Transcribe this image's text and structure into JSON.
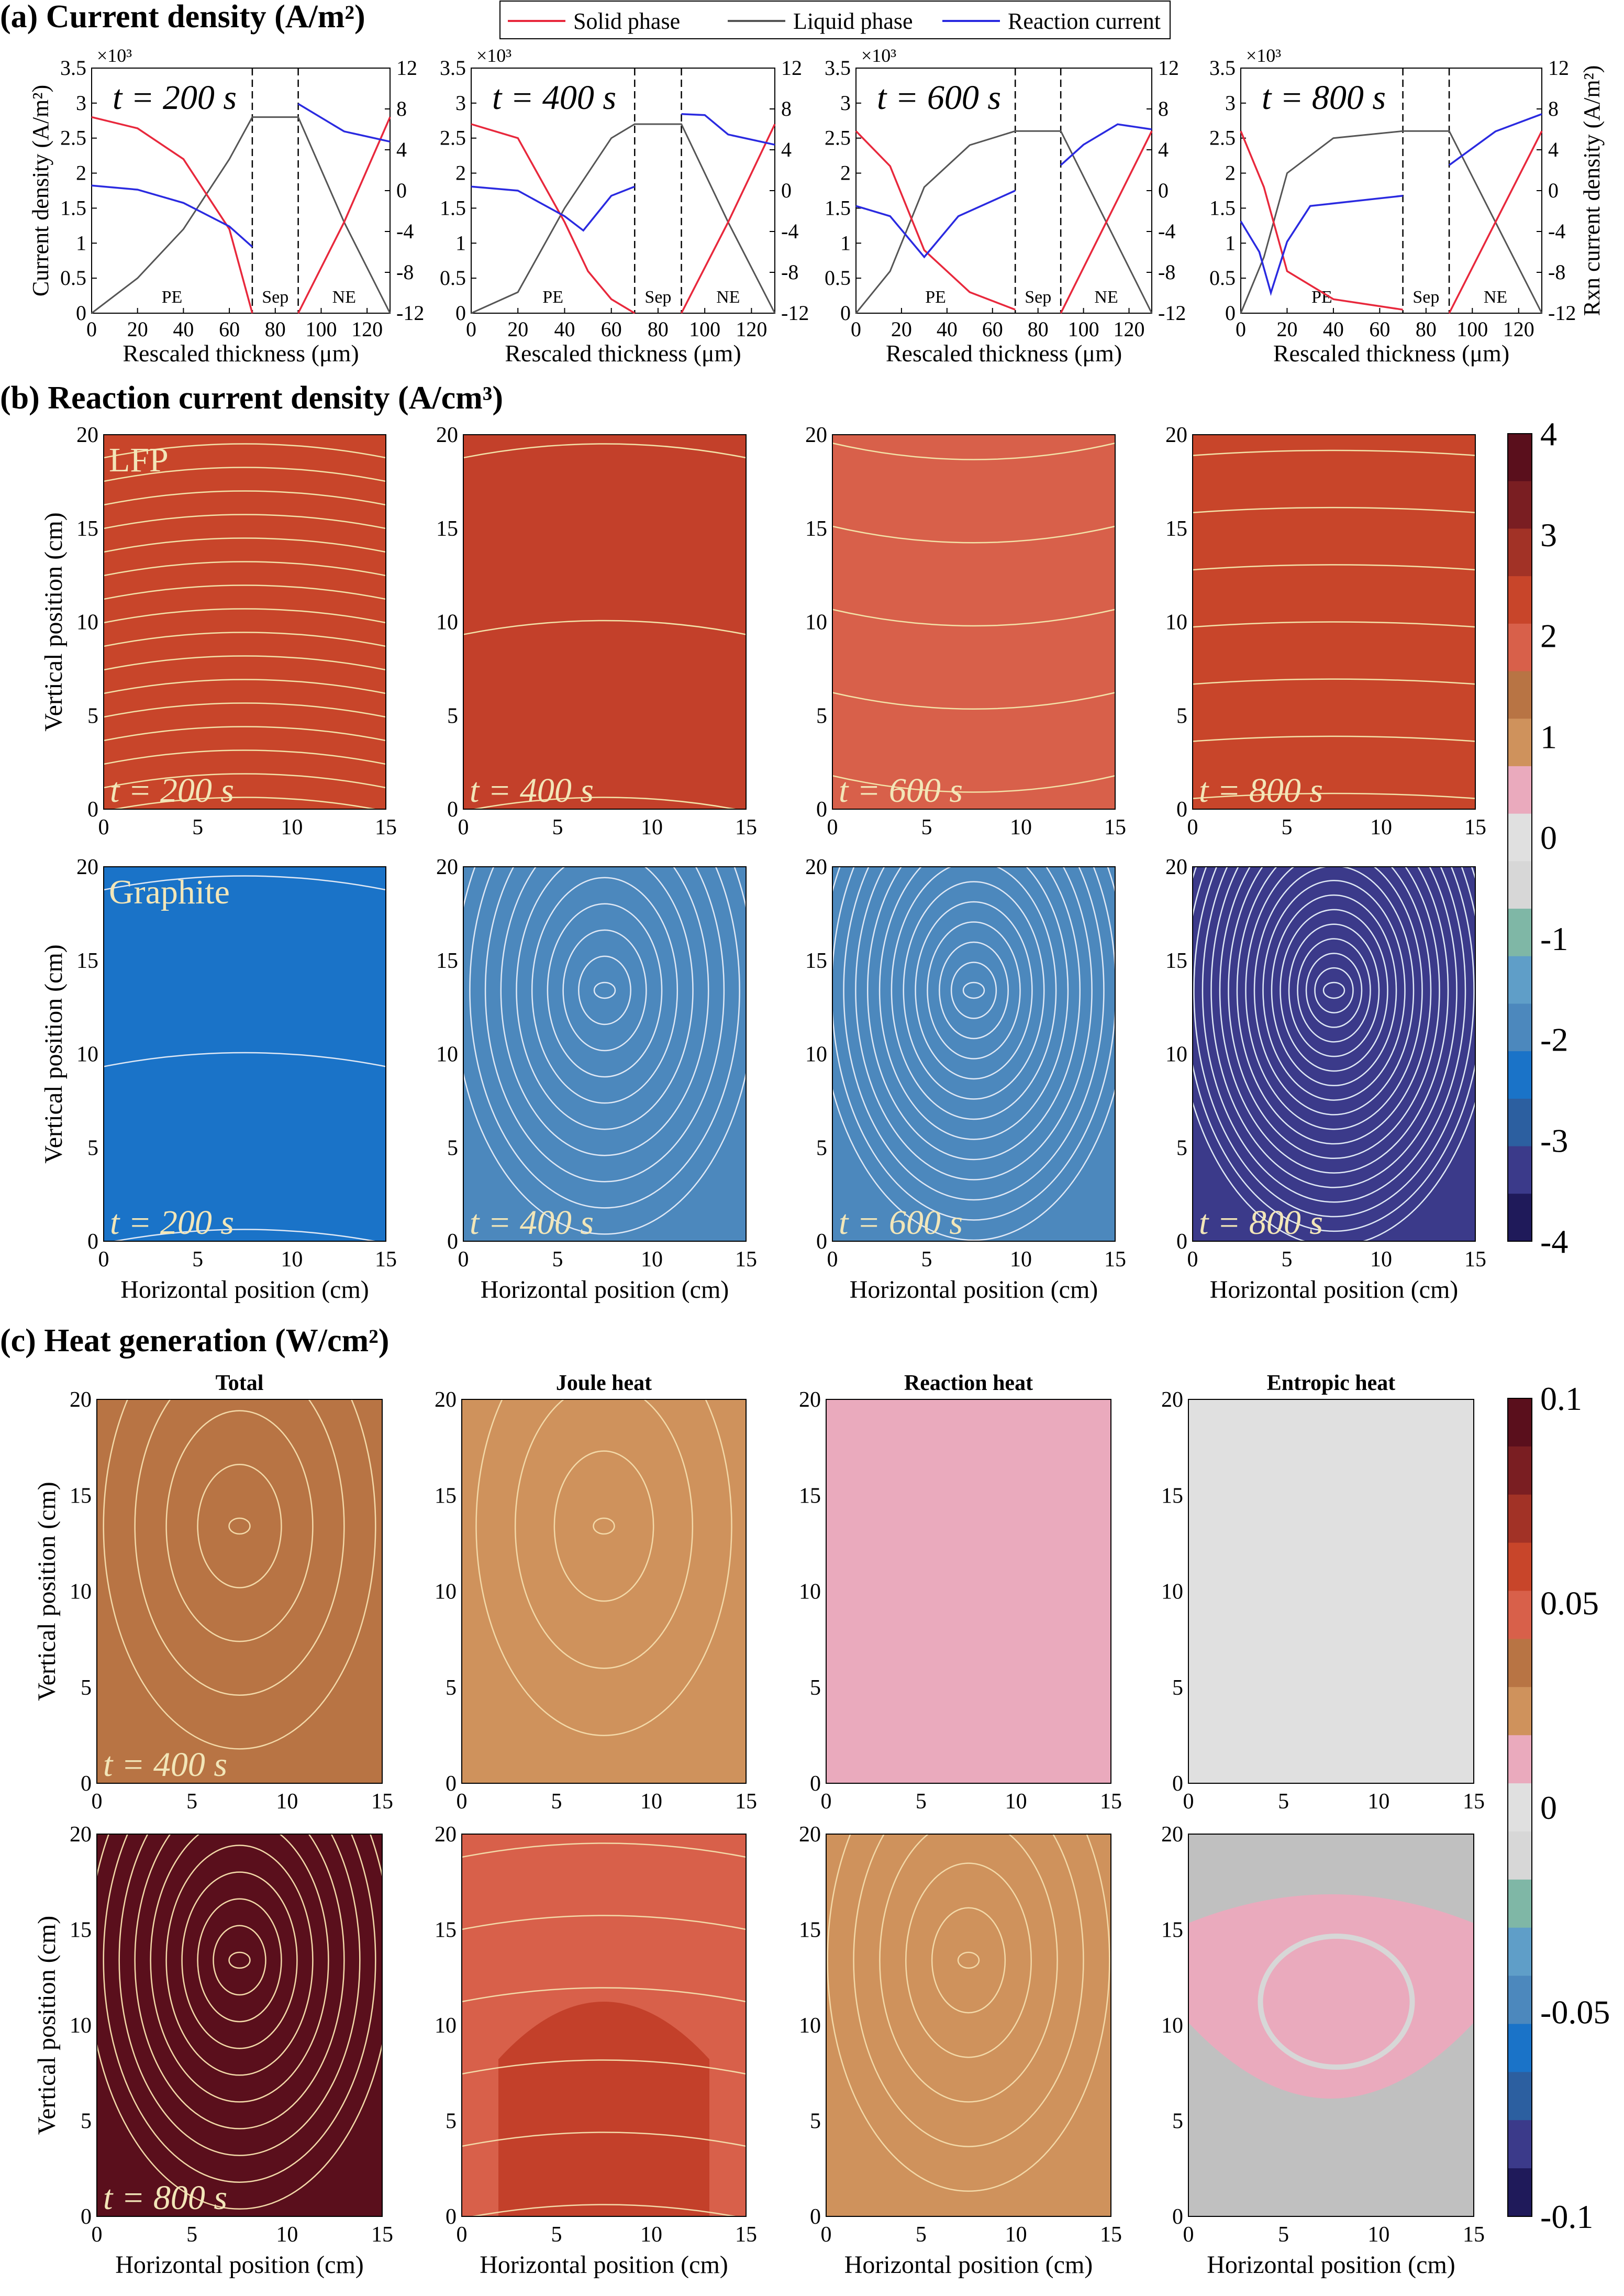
{
  "figure": {
    "section_a_title": "(a) Current density (A/m²)",
    "section_b_title": "(b) Reaction current density (A/cm³)",
    "section_c_title": "(c) Heat generation (W/cm²)"
  },
  "legend": {
    "solid": "Solid phase",
    "liquid": "Liquid phase",
    "reaction": "Reaction current"
  },
  "colors": {
    "solid": "#e8283c",
    "liquid": "#555555",
    "reaction": "#2a2ae0",
    "lfp_200": "#c8452a",
    "lfp_400": "#c3402a",
    "lfp_600": "#d8604a",
    "lfp_800": "#c8452a",
    "gr_200": "#1a73c8",
    "gr_400": "#4c88bd",
    "gr_600": "#4c88bd",
    "gr_800": "#3b3a8a",
    "heat_total_400": "#b87444",
    "heat_joule_400": "#cf925c",
    "heat_reaction_400": "#eaaabd",
    "heat_entropic_400": "#e0e0e0",
    "heat_total_800": "#5a0f1c",
    "heat_joule_800": "#d8604a",
    "heat_reaction_800": "#cf925c",
    "heat_entropic_800": "#c0c0c0"
  },
  "chart_data": [
    {
      "type": "line",
      "panel": "a",
      "times": [
        "t = 200 s",
        "t = 400 s",
        "t = 600 s",
        "t = 800 s"
      ],
      "xlabel": "Rescaled thickness (μm)",
      "ylabel_left": "Current density (A/m²)",
      "ylabel_right": "Rxn current density (A/m²)",
      "left_multiplier": "×10³",
      "xlim": [
        0,
        130
      ],
      "ylim_left": [
        0,
        3.5
      ],
      "ylim_right": [
        -12,
        12
      ],
      "x_ticks": [
        "0",
        "20",
        "40",
        "60",
        "80",
        "100",
        "120"
      ],
      "y_ticks_left": [
        "0",
        "0.5",
        "1",
        "1.5",
        "2",
        "2.5",
        "3",
        "3.5"
      ],
      "y_ticks_right": [
        "-12",
        "-8",
        "-4",
        "0",
        "4",
        "8",
        "12"
      ],
      "region_labels": [
        "PE",
        "Sep",
        "NE"
      ],
      "region_bounds": [
        70,
        90
      ],
      "subpanels": [
        {
          "time": "t = 200 s",
          "solid_pe": [
            [
              0,
              2.8
            ],
            [
              20,
              2.64
            ],
            [
              40,
              2.2
            ],
            [
              60,
              1.2
            ],
            [
              70,
              0
            ]
          ],
          "solid_ne": [
            [
              90,
              0
            ],
            [
              110,
              1.3
            ],
            [
              130,
              2.8
            ]
          ],
          "liquid": [
            [
              0,
              0
            ],
            [
              20,
              0.5
            ],
            [
              40,
              1.2
            ],
            [
              60,
              2.2
            ],
            [
              70,
              2.8
            ],
            [
              90,
              2.8
            ],
            [
              110,
              1.3
            ],
            [
              130,
              0
            ]
          ],
          "reaction_pe": [
            [
              0,
              0.5
            ],
            [
              20,
              0.1
            ],
            [
              40,
              -1.2
            ],
            [
              60,
              -3.5
            ],
            [
              70,
              -5.5
            ]
          ],
          "reaction_ne": [
            [
              90,
              8.5
            ],
            [
              110,
              5.8
            ],
            [
              130,
              4.8
            ]
          ]
        },
        {
          "time": "t = 400 s",
          "solid_pe": [
            [
              0,
              2.7
            ],
            [
              20,
              2.5
            ],
            [
              40,
              1.3
            ],
            [
              50,
              0.6
            ],
            [
              60,
              0.2
            ],
            [
              70,
              0
            ]
          ],
          "solid_ne": [
            [
              90,
              0
            ],
            [
              110,
              1.3
            ],
            [
              130,
              2.7
            ]
          ],
          "liquid": [
            [
              0,
              0
            ],
            [
              20,
              0.3
            ],
            [
              40,
              1.5
            ],
            [
              60,
              2.5
            ],
            [
              70,
              2.7
            ],
            [
              90,
              2.7
            ],
            [
              110,
              1.3
            ],
            [
              130,
              0
            ]
          ],
          "reaction_pe": [
            [
              0,
              0.4
            ],
            [
              20,
              0
            ],
            [
              40,
              -2.5
            ],
            [
              48,
              -3.9
            ],
            [
              60,
              -0.5
            ],
            [
              70,
              0.4
            ]
          ],
          "reaction_ne": [
            [
              90,
              7.5
            ],
            [
              100,
              7.4
            ],
            [
              110,
              5.5
            ],
            [
              130,
              4.5
            ]
          ]
        },
        {
          "time": "t = 600 s",
          "solid_pe": [
            [
              0,
              2.6
            ],
            [
              15,
              2.1
            ],
            [
              30,
              0.9
            ],
            [
              50,
              0.3
            ],
            [
              70,
              0.05
            ]
          ],
          "solid_ne": [
            [
              90,
              0
            ],
            [
              110,
              1.3
            ],
            [
              130,
              2.6
            ]
          ],
          "liquid": [
            [
              0,
              0
            ],
            [
              15,
              0.6
            ],
            [
              30,
              1.8
            ],
            [
              50,
              2.4
            ],
            [
              70,
              2.6
            ],
            [
              90,
              2.6
            ],
            [
              110,
              1.3
            ],
            [
              130,
              0
            ]
          ],
          "reaction_pe": [
            [
              0,
              -1.5
            ],
            [
              15,
              -2.5
            ],
            [
              30,
              -6.5
            ],
            [
              45,
              -2.5
            ],
            [
              70,
              0
            ]
          ],
          "reaction_ne": [
            [
              90,
              2.5
            ],
            [
              100,
              4.5
            ],
            [
              115,
              6.5
            ],
            [
              130,
              6.0
            ]
          ]
        },
        {
          "time": "t = 800 s",
          "solid_pe": [
            [
              0,
              2.6
            ],
            [
              10,
              1.8
            ],
            [
              20,
              0.6
            ],
            [
              40,
              0.2
            ],
            [
              70,
              0.05
            ]
          ],
          "solid_ne": [
            [
              90,
              0
            ],
            [
              110,
              1.3
            ],
            [
              130,
              2.6
            ]
          ],
          "liquid": [
            [
              0,
              0
            ],
            [
              10,
              0.8
            ],
            [
              20,
              2.0
            ],
            [
              40,
              2.5
            ],
            [
              70,
              2.6
            ],
            [
              90,
              2.6
            ],
            [
              110,
              1.3
            ],
            [
              130,
              0
            ]
          ],
          "reaction_pe": [
            [
              0,
              -3.0
            ],
            [
              8,
              -6.0
            ],
            [
              13,
              -10.0
            ],
            [
              20,
              -5.0
            ],
            [
              30,
              -1.5
            ],
            [
              70,
              -0.5
            ]
          ],
          "reaction_ne": [
            [
              90,
              2.5
            ],
            [
              110,
              5.8
            ],
            [
              130,
              7.5
            ]
          ]
        }
      ]
    },
    {
      "type": "heatmap",
      "panel": "b",
      "rows": [
        {
          "label": "LFP",
          "times": [
            "t = 200 s",
            "t = 400 s",
            "t = 600 s",
            "t = 800 s"
          ]
        },
        {
          "label": "Graphite",
          "times": [
            "t = 200 s",
            "t = 400 s",
            "t = 600 s",
            "t = 800 s"
          ]
        }
      ],
      "xlabel": "Horizontal position (cm)",
      "ylabel": "Vertical position (cm)",
      "xlim": [
        0,
        15
      ],
      "ylim": [
        0,
        20
      ],
      "x_ticks": [
        "0",
        "5",
        "10",
        "15"
      ],
      "y_ticks": [
        "0",
        "5",
        "10",
        "15",
        "20"
      ],
      "colorbar_ticks": [
        "4",
        "3",
        "2",
        "1",
        "0",
        "-1",
        "-2",
        "-3",
        "-4"
      ],
      "colorbar_range": [
        -4,
        4
      ]
    },
    {
      "type": "heatmap",
      "panel": "c",
      "column_titles": [
        "Total",
        "Joule heat",
        "Reaction heat",
        "Entropic heat"
      ],
      "row_times": [
        "t = 400 s",
        "t = 800 s"
      ],
      "xlabel": "Horizontal position (cm)",
      "ylabel": "Vertical position (cm)",
      "xlim": [
        0,
        15
      ],
      "ylim": [
        0,
        20
      ],
      "x_ticks": [
        "0",
        "5",
        "10",
        "15"
      ],
      "y_ticks": [
        "0",
        "5",
        "10",
        "15",
        "20"
      ],
      "colorbar_ticks": [
        "0.1",
        "0.05",
        "0",
        "-0.05",
        "-0.1"
      ],
      "colorbar_range": [
        -0.1,
        0.1
      ]
    }
  ]
}
